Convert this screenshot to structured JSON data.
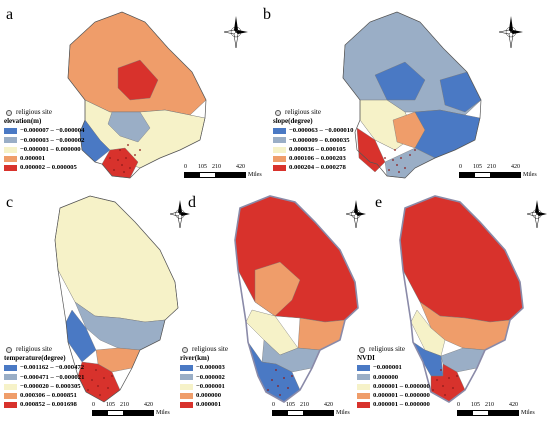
{
  "panels": [
    {
      "id": "a",
      "letter": "a",
      "site_label": "religious site",
      "legend_title": "elevation(m)",
      "classes": [
        {
          "label": "−0.000007 – −0.000004",
          "color": "#4a79c4"
        },
        {
          "label": "−0.000003 – −0.000002",
          "color": "#9aaec6"
        },
        {
          "label": "−0.000001 – 0.000000",
          "color": "#f6f2c8"
        },
        {
          "label": "0.000001",
          "color": "#ef9d6a"
        },
        {
          "label": "0.000002 – 0.000005",
          "color": "#d8322c"
        }
      ]
    },
    {
      "id": "b",
      "letter": "b",
      "site_label": "religious site",
      "legend_title": "slope(degree)",
      "classes": [
        {
          "label": "−0.000063 – −0.000010",
          "color": "#4a79c4"
        },
        {
          "label": "−0.000009 – 0.000035",
          "color": "#9aaec6"
        },
        {
          "label": "0.000036 – 0.000105",
          "color": "#f6f2c8"
        },
        {
          "label": "0.000106 – 0.000203",
          "color": "#ef9d6a"
        },
        {
          "label": "0.000204 – 0.000278",
          "color": "#d8322c"
        }
      ]
    },
    {
      "id": "c",
      "letter": "c",
      "site_label": "religious site",
      "legend_title": "temperature(degree)",
      "classes": [
        {
          "label": "−0.001162 – −0.000472",
          "color": "#4a79c4"
        },
        {
          "label": "−0.000471 – −0.000021",
          "color": "#9aaec6"
        },
        {
          "label": "−0.000020 – 0.000305",
          "color": "#f6f2c8"
        },
        {
          "label": "0.000306 – 0.000851",
          "color": "#ef9d6a"
        },
        {
          "label": "0.000852 – 0.001698",
          "color": "#d8322c"
        }
      ]
    },
    {
      "id": "d",
      "letter": "d",
      "site_label": "religious site",
      "legend_title": "river(km)",
      "classes": [
        {
          "label": "−0.000003",
          "color": "#4a79c4"
        },
        {
          "label": "−0.000002",
          "color": "#9aaec6"
        },
        {
          "label": "−0.000001",
          "color": "#f6f2c8"
        },
        {
          "label": "0.000000",
          "color": "#ef9d6a"
        },
        {
          "label": "0.000001",
          "color": "#d8322c"
        }
      ]
    },
    {
      "id": "e",
      "letter": "e",
      "site_label": "religious site",
      "legend_title": "NVDI",
      "classes": [
        {
          "label": "−0.000001",
          "color": "#4a79c4"
        },
        {
          "label": "0.000000",
          "color": "#9aaec6"
        },
        {
          "label": "0.000001 – 0.000000",
          "color": "#f6f2c8"
        },
        {
          "label": "0.000001 – 0.000000",
          "color": "#ef9d6a"
        },
        {
          "label": "0.000001 – 0.000000",
          "color": "#d8322c"
        }
      ]
    }
  ],
  "scale": {
    "ticks": [
      "0",
      "105",
      "210",
      "420"
    ],
    "unit": "Miles"
  },
  "compass": {
    "north": "N",
    "south": "S",
    "east": "E",
    "west": "W"
  }
}
